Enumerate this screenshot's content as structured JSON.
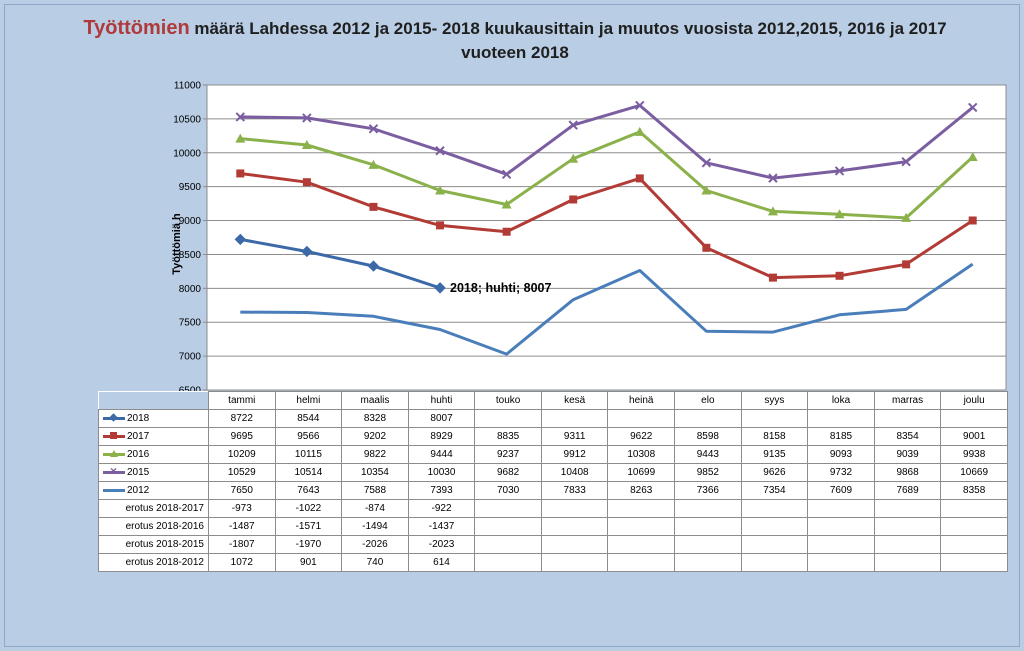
{
  "title": {
    "highlight": "Työttömien",
    "rest": " määrä Lahdessa 2012 ja 2015- 2018 kuukausittain ja muutos vuosista 2012,2015, 2016 ja 2017 vuoteen 2018"
  },
  "chart_data": {
    "type": "line",
    "ylabel": "Työttömiä h",
    "ylim": [
      6500,
      11000
    ],
    "yticks": [
      6500,
      7000,
      7500,
      8000,
      8500,
      9000,
      9500,
      10000,
      10500,
      11000
    ],
    "grid": true,
    "categories": [
      "tammi",
      "helmi",
      "maalis",
      "huhti",
      "touko",
      "kesä",
      "heinä",
      "elo",
      "syys",
      "loka",
      "marras",
      "joulu"
    ],
    "series": [
      {
        "name": "2018",
        "color": "#3c69a8",
        "marker": "diamond",
        "values": [
          8722,
          8544,
          8328,
          8007,
          null,
          null,
          null,
          null,
          null,
          null,
          null,
          null
        ]
      },
      {
        "name": "2017",
        "color": "#b33b36",
        "marker": "square",
        "values": [
          9695,
          9566,
          9202,
          8929,
          8835,
          9311,
          9622,
          8598,
          8158,
          8185,
          8354,
          9001
        ]
      },
      {
        "name": "2016",
        "color": "#8ab14a",
        "marker": "triangle",
        "values": [
          10209,
          10115,
          9822,
          9444,
          9237,
          9912,
          10308,
          9443,
          9135,
          9093,
          9039,
          9938
        ]
      },
      {
        "name": "2015",
        "color": "#7b5ea0",
        "marker": "x",
        "values": [
          10529,
          10514,
          10354,
          10030,
          9682,
          10408,
          10699,
          9852,
          9626,
          9732,
          9868,
          10669
        ]
      },
      {
        "name": "2012",
        "color": "#4a7ebb",
        "marker": "none",
        "values": [
          7650,
          7643,
          7588,
          7393,
          7030,
          7833,
          8263,
          7366,
          7354,
          7609,
          7689,
          8358
        ]
      }
    ],
    "annotations": [
      {
        "text": "2018; huhti; 8007",
        "series": "2018",
        "category": "huhti"
      }
    ],
    "table_extra_rows": [
      {
        "name": "erotus 2018-2017",
        "values": [
          "-973",
          "-1022",
          "-874",
          "-922",
          "",
          "",
          "",
          "",
          "",
          "",
          "",
          ""
        ]
      },
      {
        "name": "erotus 2018-2016",
        "values": [
          "-1487",
          "-1571",
          "-1494",
          "-1437",
          "",
          "",
          "",
          "",
          "",
          "",
          "",
          ""
        ]
      },
      {
        "name": "erotus 2018-2015",
        "values": [
          "-1807",
          "-1970",
          "-2026",
          "-2023",
          "",
          "",
          "",
          "",
          "",
          "",
          "",
          ""
        ]
      },
      {
        "name": "erotus 2018-2012",
        "values": [
          "1072",
          "901",
          "740",
          "614",
          "",
          "",
          "",
          "",
          "",
          "",
          "",
          ""
        ]
      }
    ]
  }
}
